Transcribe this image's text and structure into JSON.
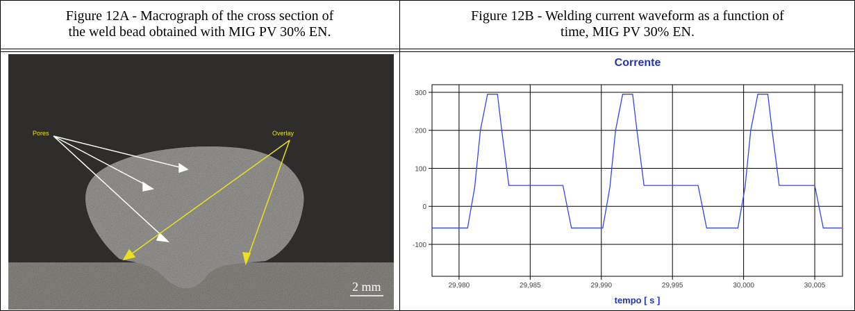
{
  "figure_a": {
    "caption": [
      "Figure 12A - Macrograph of the cross section of",
      "the weld bead obtained with MIG PV 30% EN."
    ],
    "labels": {
      "pores": "Pores",
      "overlay": "Overlay",
      "scale": "2 mm"
    }
  },
  "figure_b": {
    "caption": [
      "Figure 12B - Welding current waveform as a function of",
      "time, MIG PV 30% EN."
    ]
  },
  "chart_data": {
    "type": "line",
    "title": "Corrente",
    "x_label": "tempo [ s ]",
    "color": "#3344ee",
    "grid": true,
    "x": [
      29.9781,
      29.9806,
      29.9811,
      29.9815,
      29.982,
      29.9827,
      29.983,
      29.9835,
      29.9873,
      29.9879,
      29.9901,
      29.9906,
      29.991,
      29.9915,
      29.9922,
      29.9925,
      29.993,
      29.9968,
      29.9974,
      29.9996,
      30.0001,
      30.0005,
      30.001,
      30.0017,
      30.002,
      30.0025,
      30.005,
      30.0056,
      30.0069
    ],
    "values": [
      -57,
      -57,
      50,
      200,
      295,
      295,
      200,
      55,
      55,
      -57,
      -57,
      50,
      200,
      295,
      295,
      200,
      55,
      55,
      -57,
      -57,
      50,
      200,
      295,
      295,
      200,
      55,
      55,
      -57,
      -57
    ],
    "xlim": [
      29.9781,
      30.00695
    ],
    "ylim": [
      -184,
      320
    ],
    "xticks": [
      {
        "value": 29.98,
        "label": "29,980"
      },
      {
        "value": 29.985,
        "label": "29,985"
      },
      {
        "value": 29.99,
        "label": "29,990"
      },
      {
        "value": 29.995,
        "label": "29,995"
      },
      {
        "value": 30.0,
        "label": "30,000"
      },
      {
        "value": 30.005,
        "label": "30,005"
      }
    ],
    "yticks": [
      -100,
      0,
      100,
      200,
      300
    ]
  }
}
